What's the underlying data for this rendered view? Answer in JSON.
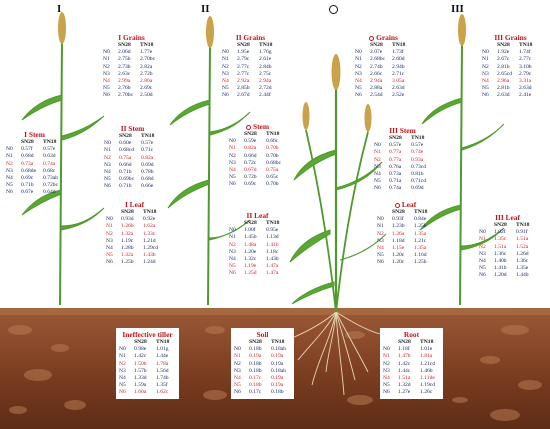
{
  "headers": {
    "I": "I",
    "II": "II",
    "III": "III"
  },
  "col_labels": {
    "n": "",
    "a": "SN28",
    "b": "TN18"
  },
  "colors": {
    "highlight": "#d01f24",
    "normal": "#1b2a66",
    "title": "#c0141a",
    "soil": "#8a4a2b",
    "plant": "#4e9a2e",
    "spike": "#c9a24a"
  },
  "panels": {
    "I_grains": {
      "title": "I Grains",
      "rows": [
        {
          "n": "N0",
          "a": "2.06d",
          "b": "1.77e",
          "hl": false
        },
        {
          "n": "N1",
          "a": "2.75b",
          "b": "2.70bc",
          "hl": false
        },
        {
          "n": "N2",
          "a": "2.73b",
          "b": "2.82a",
          "hl": false
        },
        {
          "n": "N3",
          "a": "2.63c",
          "b": "2.72b",
          "hl": false
        },
        {
          "n": "N4",
          "a": "2.99a",
          "b": "2.86a",
          "hl": true
        },
        {
          "n": "N5",
          "a": "2.76b",
          "b": "2.69c",
          "hl": false
        },
        {
          "n": "N6",
          "a": "2.70bc",
          "b": "2.50d",
          "hl": false
        }
      ]
    },
    "II_grains": {
      "title": "II Grains",
      "rows": [
        {
          "n": "N0",
          "a": "1.95e",
          "b": "1.76g",
          "hl": false
        },
        {
          "n": "N1",
          "a": "2.79c",
          "b": "2.61e",
          "hl": false
        },
        {
          "n": "N2",
          "a": "2.77c",
          "b": "2.84b",
          "hl": false
        },
        {
          "n": "N3",
          "a": "2.77c",
          "b": "2.75c",
          "hl": false
        },
        {
          "n": "N4",
          "a": "2.92a",
          "b": "2.94a",
          "hl": true
        },
        {
          "n": "N5",
          "a": "2.85b",
          "b": "2.72d",
          "hl": false
        },
        {
          "n": "N6",
          "a": "2.67d",
          "b": "2.44f",
          "hl": false
        }
      ]
    },
    "O_grains": {
      "title": "Grains",
      "circle": true,
      "rows": [
        {
          "n": "N0",
          "a": "2.07e",
          "b": "1.73f",
          "hl": false
        },
        {
          "n": "N1",
          "a": "2.68bc",
          "b": "2.60d",
          "hl": false
        },
        {
          "n": "N2",
          "a": "2.74b",
          "b": "2.94b",
          "hl": false
        },
        {
          "n": "N3",
          "a": "2.66c",
          "b": "2.71c",
          "hl": false
        },
        {
          "n": "N4",
          "a": "2.94a",
          "b": "3.05a",
          "hl": true
        },
        {
          "n": "N5",
          "a": "2.88a",
          "b": "2.63d",
          "hl": false
        },
        {
          "n": "N6",
          "a": "2.54d",
          "b": "2.52e",
          "hl": false
        }
      ]
    },
    "III_grains": {
      "title": "III Grains",
      "rows": [
        {
          "n": "N0",
          "a": "1.92e",
          "b": "1.74f",
          "hl": false
        },
        {
          "n": "N1",
          "a": "2.67c",
          "b": "2.77c",
          "hl": false
        },
        {
          "n": "N2",
          "a": "2.81b",
          "b": "3.10b",
          "hl": false
        },
        {
          "n": "N3",
          "a": "2.65cd",
          "b": "2.79c",
          "hl": false
        },
        {
          "n": "N4",
          "a": "2.96a",
          "b": "3.31a",
          "hl": true
        },
        {
          "n": "N5",
          "a": "2.81b",
          "b": "2.63d",
          "hl": false
        },
        {
          "n": "N6",
          "a": "2.63d",
          "b": "2.41e",
          "hl": false
        }
      ]
    },
    "I_stem": {
      "title": "I Stem",
      "rows": [
        {
          "n": "N0",
          "a": "0.57f",
          "b": "0.57e",
          "hl": false
        },
        {
          "n": "N1",
          "a": "0.68d",
          "b": "0.63d",
          "hl": false
        },
        {
          "n": "N2",
          "a": "0.73a",
          "b": "0.74a",
          "hl": true
        },
        {
          "n": "N3",
          "a": "0.68de",
          "b": "0.68c",
          "hl": false
        },
        {
          "n": "N4",
          "a": "0.69c",
          "b": "0.73ab",
          "hl": false
        },
        {
          "n": "N5",
          "a": "0.71b",
          "b": "0.72bc",
          "hl": false
        },
        {
          "n": "N6",
          "a": "0.67e",
          "b": "0.64d",
          "hl": false
        }
      ]
    },
    "II_stem": {
      "title": "II Stem",
      "rows": [
        {
          "n": "N0",
          "a": "0.60e",
          "b": "0.57e",
          "hl": false
        },
        {
          "n": "N1",
          "a": "0.68cd",
          "b": "0.71c",
          "hl": false
        },
        {
          "n": "N2",
          "a": "0.75a",
          "b": "0.82a",
          "hl": true
        },
        {
          "n": "N3",
          "a": "0.66d",
          "b": "0.69d",
          "hl": false
        },
        {
          "n": "N4",
          "a": "0.71b",
          "b": "0.78b",
          "hl": false
        },
        {
          "n": "N5",
          "a": "0.69bc",
          "b": "0.68d",
          "hl": false
        },
        {
          "n": "N6",
          "a": "0.71b",
          "b": "0.66e",
          "hl": false
        }
      ]
    },
    "O_stem": {
      "title": "Stem",
      "circle": true,
      "rows": [
        {
          "n": "N0",
          "a": "0.59e",
          "b": "0.66c",
          "hl": false
        },
        {
          "n": "N1",
          "a": "0.82a",
          "b": "0.70b",
          "hl": true
        },
        {
          "n": "N2",
          "a": "0.66d",
          "b": "0.70b",
          "hl": false
        },
        {
          "n": "N3",
          "a": "0.72c",
          "b": "0.68bc",
          "hl": false
        },
        {
          "n": "N4",
          "a": "0.67d",
          "b": "0.75a",
          "hl": true
        },
        {
          "n": "N5",
          "a": "0.72b",
          "b": "0.65c",
          "hl": false
        },
        {
          "n": "N6",
          "a": "0.69c",
          "b": "0.70b",
          "hl": false
        }
      ]
    },
    "III_stem": {
      "title": "III Stem",
      "rows": [
        {
          "n": "N0",
          "a": "0.57e",
          "b": "0.57e",
          "hl": false
        },
        {
          "n": "N1",
          "a": "0.77a",
          "b": "0.74e",
          "hl": true
        },
        {
          "n": "N2",
          "a": "0.77a",
          "b": "0.93a",
          "hl": true
        },
        {
          "n": "N3",
          "a": "0.76a",
          "b": "0.73cd",
          "hl": false
        },
        {
          "n": "N4",
          "a": "0.73a",
          "b": "0.81b",
          "hl": false
        },
        {
          "n": "N5",
          "a": "0.71a",
          "b": "0.71cd",
          "hl": false
        },
        {
          "n": "N6",
          "a": "0.74a",
          "b": "0.69d",
          "hl": false
        }
      ]
    },
    "I_leaf": {
      "title": "I Leaf",
      "rows": [
        {
          "n": "N0",
          "a": "0.93d",
          "b": "0.92e",
          "hl": false
        },
        {
          "n": "N1",
          "a": "1.26b",
          "b": "1.62a",
          "hl": true
        },
        {
          "n": "N2",
          "a": "1.32a",
          "b": "1.33c",
          "hl": true
        },
        {
          "n": "N3",
          "a": "1.19c",
          "b": "1.21d",
          "hl": false
        },
        {
          "n": "N4",
          "a": "1.28b",
          "b": "1.29cd",
          "hl": false
        },
        {
          "n": "N5",
          "a": "1.32a",
          "b": "1.43b",
          "hl": true
        },
        {
          "n": "N6",
          "a": "1.25b",
          "b": "1.24d",
          "hl": false
        }
      ]
    },
    "II_leaf": {
      "title": "II Leaf",
      "rows": [
        {
          "n": "N0",
          "a": "1.00f",
          "b": "0.95e",
          "hl": false
        },
        {
          "n": "N1",
          "a": "1.45b",
          "b": "1.13d",
          "hl": false
        },
        {
          "n": "N2",
          "a": "1.48a",
          "b": "1.41b",
          "hl": true
        },
        {
          "n": "N3",
          "a": "1.20e",
          "b": "1.18c",
          "hl": false
        },
        {
          "n": "N4",
          "a": "1.32c",
          "b": "1.43b",
          "hl": false
        },
        {
          "n": "N5",
          "a": "1.19e",
          "b": "1.47a",
          "hl": true
        },
        {
          "n": "N6",
          "a": "1.25d",
          "b": "1.47a",
          "hl": true
        }
      ]
    },
    "O_leaf": {
      "title": "Leaf",
      "circle": true,
      "rows": [
        {
          "n": "N0",
          "a": "0.93f",
          "b": "0.84e",
          "hl": false
        },
        {
          "n": "N1",
          "a": "1.23b",
          "b": "1.25b",
          "hl": false
        },
        {
          "n": "N2",
          "a": "1.26a",
          "b": "1.35a",
          "hl": true
        },
        {
          "n": "N3",
          "a": "1.18d",
          "b": "1.21c",
          "hl": false
        },
        {
          "n": "N4",
          "a": "1.15e",
          "b": "1.35a",
          "hl": true
        },
        {
          "n": "N5",
          "a": "1.20c",
          "b": "1.16d",
          "hl": false
        },
        {
          "n": "N6",
          "a": "1.20c",
          "b": "1.25b",
          "hl": false
        }
      ]
    },
    "III_leaf": {
      "title": "III Leaf",
      "rows": [
        {
          "n": "N0",
          "a": "1.02f",
          "b": "0.91f",
          "hl": false
        },
        {
          "n": "N1",
          "a": "1.35c",
          "b": "1.51a",
          "hl": true
        },
        {
          "n": "N2",
          "a": "1.51a",
          "b": "1.52a",
          "hl": true
        },
        {
          "n": "N3",
          "a": "1.36c",
          "b": "1.26d",
          "hl": false
        },
        {
          "n": "N4",
          "a": "1.40b",
          "b": "1.36c",
          "hl": false
        },
        {
          "n": "N5",
          "a": "1.41b",
          "b": "1.35e",
          "hl": false
        },
        {
          "n": "N6",
          "a": "1.20d",
          "b": "1.44b",
          "hl": false
        }
      ]
    },
    "tiller": {
      "title": "Ineffective tiller",
      "rows": [
        {
          "n": "N0",
          "a": "0.98e",
          "b": "1.01g",
          "hl": false
        },
        {
          "n": "N1",
          "a": "1.42c",
          "b": "1.44e",
          "hl": false
        },
        {
          "n": "N2",
          "a": "1.50b",
          "b": "1.78a",
          "hl": true
        },
        {
          "n": "N3",
          "a": "1.57b",
          "b": "1.56d",
          "hl": false
        },
        {
          "n": "N4",
          "a": "1.33d",
          "b": "1.74b",
          "hl": false
        },
        {
          "n": "N5",
          "a": "1.59a",
          "b": "1.35f",
          "hl": false
        },
        {
          "n": "N6",
          "a": "1.60a",
          "b": "1.62c",
          "hl": true
        }
      ]
    },
    "soil": {
      "title": "Soil",
      "rows": [
        {
          "n": "N0",
          "a": "0.18b",
          "b": "0.18ab",
          "hl": false
        },
        {
          "n": "N1",
          "a": "0.19a",
          "b": "0.19a",
          "hl": true
        },
        {
          "n": "N2",
          "a": "0.18b",
          "b": "0.19a",
          "hl": false
        },
        {
          "n": "N3",
          "a": "0.18b",
          "b": "0.18ab",
          "hl": false
        },
        {
          "n": "N4",
          "a": "0.17c",
          "b": "0.19a",
          "hl": true
        },
        {
          "n": "N5",
          "a": "0.18b",
          "b": "0.19a",
          "hl": true
        },
        {
          "n": "N6",
          "a": "0.17c",
          "b": "0.18b",
          "hl": false
        }
      ]
    },
    "root": {
      "title": "Root",
      "rows": [
        {
          "n": "N0",
          "a": "1.18f",
          "b": "1.01e",
          "hl": false
        },
        {
          "n": "N1",
          "a": "1.47b",
          "b": "1.81a",
          "hl": true
        },
        {
          "n": "N2",
          "a": "1.42c",
          "b": "1.21cd",
          "hl": false
        },
        {
          "n": "N3",
          "a": "1.44c",
          "b": "1.46b",
          "hl": false
        },
        {
          "n": "N4",
          "a": "1.51a",
          "b": "1.11de",
          "hl": true
        },
        {
          "n": "N5",
          "a": "1.32d",
          "b": "1.19cd",
          "hl": false
        },
        {
          "n": "N6",
          "a": "1.27e",
          "b": "1.26c",
          "hl": false
        }
      ]
    }
  }
}
